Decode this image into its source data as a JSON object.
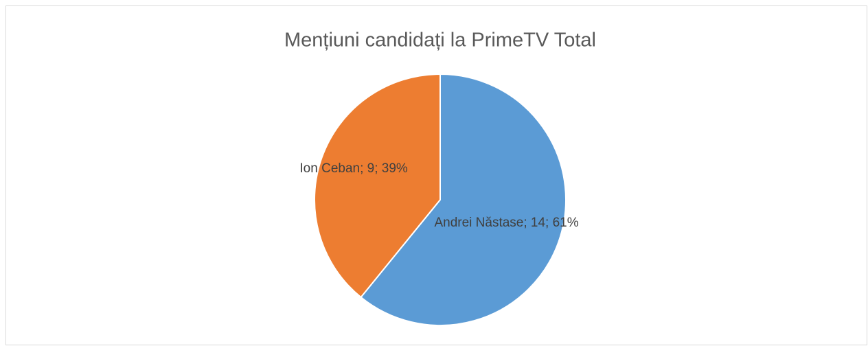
{
  "chart_data": {
    "type": "pie",
    "title": "Mențiuni candidați la PrimeTV Total",
    "categories": [
      "Andrei Năstase",
      "Ion Ceban"
    ],
    "values": [
      14,
      9
    ],
    "value_labels": [
      "Andrei Năstase; 14; 61%",
      "Ion Ceban; 9; 39%"
    ],
    "colors": [
      "#5b9bd5",
      "#ed7d31"
    ]
  }
}
